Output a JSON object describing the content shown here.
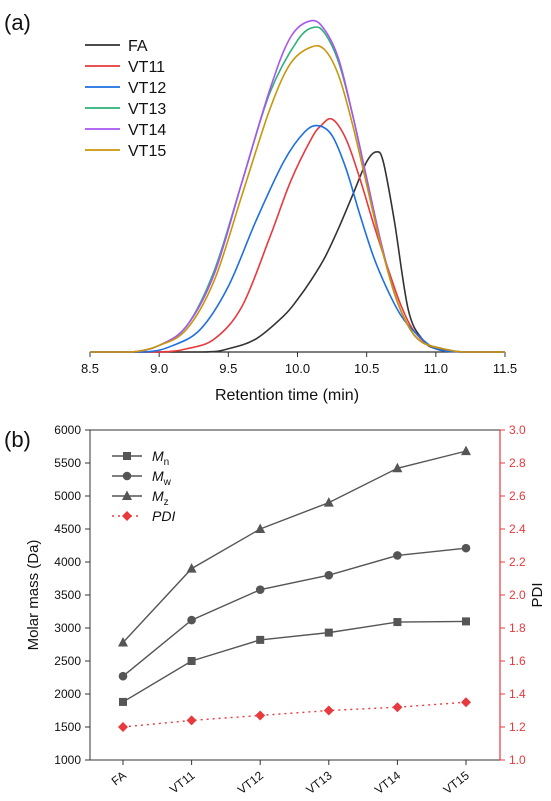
{
  "panel_labels": {
    "a": "(a)",
    "b": "(b)"
  },
  "chart_data": [
    {
      "type": "line",
      "panel": "(a)",
      "xlabel": "Retention time (min)",
      "ylabel": "",
      "xlim": [
        8.5,
        11.5
      ],
      "xticks": [
        "8.5",
        "9.0",
        "9.5",
        "10.0",
        "10.5",
        "11.0",
        "11.5"
      ],
      "y_axis_visible": false,
      "legend_position": "top-left",
      "series": [
        {
          "name": "FA",
          "color": "#333333",
          "points": [
            [
              8.5,
              0
            ],
            [
              9.3,
              0
            ],
            [
              9.5,
              0.01
            ],
            [
              9.7,
              0.04
            ],
            [
              9.9,
              0.11
            ],
            [
              10.0,
              0.16
            ],
            [
              10.1,
              0.22
            ],
            [
              10.2,
              0.29
            ],
            [
              10.3,
              0.38
            ],
            [
              10.4,
              0.48
            ],
            [
              10.5,
              0.58
            ],
            [
              10.57,
              0.61
            ],
            [
              10.62,
              0.58
            ],
            [
              10.7,
              0.4
            ],
            [
              10.8,
              0.13
            ],
            [
              10.9,
              0.04
            ],
            [
              11.0,
              0.01
            ],
            [
              11.2,
              0
            ],
            [
              11.5,
              0
            ]
          ]
        },
        {
          "name": "VT11",
          "color": "#e8393e",
          "points": [
            [
              8.5,
              0
            ],
            [
              9.0,
              0
            ],
            [
              9.2,
              0.01
            ],
            [
              9.4,
              0.04
            ],
            [
              9.6,
              0.14
            ],
            [
              9.8,
              0.35
            ],
            [
              9.95,
              0.52
            ],
            [
              10.1,
              0.65
            ],
            [
              10.17,
              0.69
            ],
            [
              10.25,
              0.71
            ],
            [
              10.35,
              0.65
            ],
            [
              10.45,
              0.53
            ],
            [
              10.55,
              0.39
            ],
            [
              10.65,
              0.26
            ],
            [
              10.75,
              0.14
            ],
            [
              10.85,
              0.06
            ],
            [
              11.0,
              0.01
            ],
            [
              11.2,
              0
            ],
            [
              11.5,
              0
            ]
          ]
        },
        {
          "name": "VT12",
          "color": "#1f6fe0",
          "points": [
            [
              8.5,
              0
            ],
            [
              8.9,
              0
            ],
            [
              9.1,
              0.02
            ],
            [
              9.3,
              0.07
            ],
            [
              9.5,
              0.2
            ],
            [
              9.7,
              0.4
            ],
            [
              9.9,
              0.58
            ],
            [
              10.05,
              0.67
            ],
            [
              10.15,
              0.69
            ],
            [
              10.25,
              0.66
            ],
            [
              10.35,
              0.56
            ],
            [
              10.45,
              0.42
            ],
            [
              10.55,
              0.29
            ],
            [
              10.65,
              0.19
            ],
            [
              10.75,
              0.11
            ],
            [
              10.85,
              0.06
            ],
            [
              11.0,
              0.01
            ],
            [
              11.2,
              0
            ],
            [
              11.5,
              0
            ]
          ]
        },
        {
          "name": "VT13",
          "color": "#2db07a",
          "points": [
            [
              8.5,
              0
            ],
            [
              8.8,
              0
            ],
            [
              9.0,
              0.02
            ],
            [
              9.2,
              0.08
            ],
            [
              9.4,
              0.25
            ],
            [
              9.6,
              0.52
            ],
            [
              9.8,
              0.79
            ],
            [
              10.0,
              0.95
            ],
            [
              10.12,
              0.99
            ],
            [
              10.2,
              0.97
            ],
            [
              10.3,
              0.88
            ],
            [
              10.4,
              0.72
            ],
            [
              10.5,
              0.53
            ],
            [
              10.6,
              0.34
            ],
            [
              10.7,
              0.18
            ],
            [
              10.8,
              0.08
            ],
            [
              10.9,
              0.03
            ],
            [
              11.05,
              0.01
            ],
            [
              11.2,
              0
            ],
            [
              11.5,
              0
            ]
          ]
        },
        {
          "name": "VT14",
          "color": "#a855f0",
          "points": [
            [
              8.5,
              0
            ],
            [
              8.8,
              0
            ],
            [
              9.0,
              0.02
            ],
            [
              9.2,
              0.08
            ],
            [
              9.4,
              0.24
            ],
            [
              9.6,
              0.52
            ],
            [
              9.8,
              0.8
            ],
            [
              9.95,
              0.96
            ],
            [
              10.1,
              1.01
            ],
            [
              10.2,
              0.98
            ],
            [
              10.3,
              0.89
            ],
            [
              10.4,
              0.72
            ],
            [
              10.5,
              0.53
            ],
            [
              10.6,
              0.34
            ],
            [
              10.7,
              0.18
            ],
            [
              10.8,
              0.08
            ],
            [
              10.9,
              0.03
            ],
            [
              11.05,
              0.01
            ],
            [
              11.2,
              0
            ],
            [
              11.5,
              0
            ]
          ]
        },
        {
          "name": "VT15",
          "color": "#c8960a",
          "points": [
            [
              8.5,
              0
            ],
            [
              8.8,
              0
            ],
            [
              9.0,
              0.02
            ],
            [
              9.2,
              0.07
            ],
            [
              9.4,
              0.22
            ],
            [
              9.6,
              0.48
            ],
            [
              9.8,
              0.74
            ],
            [
              9.95,
              0.88
            ],
            [
              10.1,
              0.93
            ],
            [
              10.2,
              0.92
            ],
            [
              10.3,
              0.84
            ],
            [
              10.4,
              0.69
            ],
            [
              10.5,
              0.51
            ],
            [
              10.6,
              0.33
            ],
            [
              10.7,
              0.18
            ],
            [
              10.8,
              0.08
            ],
            [
              10.9,
              0.03
            ],
            [
              11.05,
              0.01
            ],
            [
              11.2,
              0
            ],
            [
              11.5,
              0
            ]
          ]
        }
      ]
    },
    {
      "type": "line",
      "panel": "(b)",
      "categories": [
        "FA",
        "VT11",
        "VT12",
        "VT13",
        "VT14",
        "VT15"
      ],
      "ylabel": "Molar mass (Da)",
      "ylim": [
        1000,
        6000
      ],
      "yticks": [
        1000,
        1500,
        2000,
        2500,
        3000,
        3500,
        4000,
        4500,
        5000,
        5500,
        6000
      ],
      "y2label": "PDI",
      "y2lim": [
        1.0,
        3.0
      ],
      "y2ticks": [
        "1.0",
        "1.2",
        "1.4",
        "1.6",
        "1.8",
        "2.0",
        "2.2",
        "2.4",
        "2.6",
        "2.8",
        "3.0"
      ],
      "y2color": "#e8393e",
      "legend_position": "top-left",
      "series": [
        {
          "name": "M",
          "sub": "n",
          "marker": "square",
          "axis": "left",
          "color": "#555555",
          "values": [
            1880,
            2500,
            2820,
            2930,
            3090,
            3100
          ]
        },
        {
          "name": "M",
          "sub": "w",
          "marker": "circle",
          "axis": "left",
          "color": "#555555",
          "values": [
            2270,
            3120,
            3580,
            3800,
            4100,
            4210
          ]
        },
        {
          "name": "M",
          "sub": "z",
          "marker": "triangle",
          "axis": "left",
          "color": "#555555",
          "values": [
            2780,
            3900,
            4500,
            4900,
            5420,
            5680
          ]
        },
        {
          "name": "PDI",
          "sub": "",
          "marker": "diamond",
          "axis": "right",
          "color": "#e8393e",
          "dashed": true,
          "values": [
            1.2,
            1.24,
            1.27,
            1.3,
            1.32,
            1.35
          ]
        }
      ]
    }
  ]
}
